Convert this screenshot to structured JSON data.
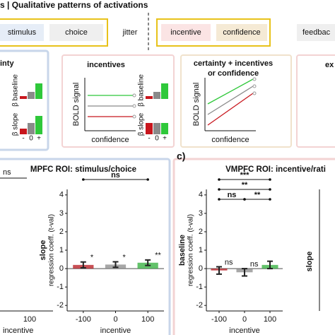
{
  "header": {
    "title": "s | Qualitative patterns of activations"
  },
  "timeline": {
    "events": [
      "stimulus",
      "choice",
      "jitter",
      "incentive",
      "confidence",
      "feedbac"
    ]
  },
  "panels": [
    {
      "title": "inty"
    },
    {
      "title": "incentives"
    },
    {
      "title": "certainty + incentives",
      "subtitle": "or confidence"
    },
    {
      "title": "ex"
    }
  ],
  "schematic": {
    "y_label": "BOLD signal",
    "x_label": "confidence",
    "beta_baseline": "β baseline",
    "beta_slope": "β slope",
    "levels": [
      "-",
      "0",
      "+"
    ]
  },
  "sections": [
    {
      "title": "MPFC ROI: stimulus/choice"
    },
    {
      "letter": "c)",
      "title": "VMPFC ROI: incentive/rati"
    }
  ],
  "left_plot": {
    "bracket": "ns",
    "xtick": "100",
    "x_label": "incentive"
  },
  "right_plot": {
    "y_label": "slope"
  },
  "plots": [
    {
      "y_label": "slope",
      "y_sublabel": "regression coeff. (t-val)",
      "x_label": "incentive",
      "xticks": [
        -100,
        0,
        100
      ],
      "ylim": [
        -2.3,
        4.3
      ],
      "yticks": [
        -2,
        -1,
        0,
        1,
        2,
        3,
        4
      ],
      "values": [
        0.2,
        0.22,
        0.32
      ],
      "errors": [
        0.16,
        0.15,
        0.15
      ],
      "colors": [
        "#b5161c",
        "#8a8a8a",
        "#2fae3a"
      ],
      "stars": [
        "*",
        "*",
        "**"
      ],
      "brackets": [
        "ns"
      ]
    },
    {
      "y_label": "baseline",
      "y_sublabel": "regression coeff. (t-val)",
      "x_label": "incentive",
      "xticks": [
        -100,
        0,
        100
      ],
      "ylim": [
        -2.3,
        4.3
      ],
      "yticks": [
        -2,
        -1,
        0,
        1,
        2,
        3,
        4
      ],
      "values": [
        -0.1,
        -0.2,
        0.2
      ],
      "errors": [
        0.2,
        0.2,
        0.2
      ],
      "colors": [
        "#b5161c",
        "#8a8a8a",
        "#2fae3a"
      ],
      "stars": [
        "ns",
        "ns"
      ],
      "brackets": [
        "***",
        "**",
        "ns",
        "**"
      ]
    }
  ]
}
